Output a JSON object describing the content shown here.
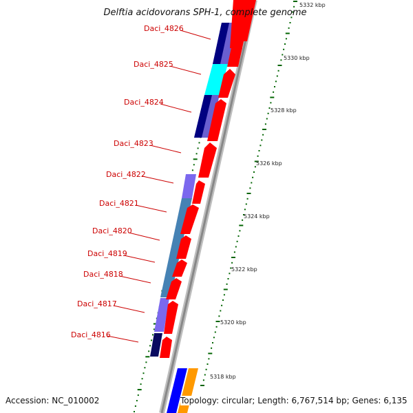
{
  "title": "Delftia acidovorans SPH-1, complete genome",
  "footer": {
    "accession": "Accession: NC_010002",
    "topology": "Topology: circular; Length: 6,767,514 bp; Genes: 6,135"
  },
  "kbp_ticks": [
    "5332 kbp",
    "5330 kbp",
    "5328 kbp",
    "5326 kbp",
    "5324 kbp",
    "5322 kbp",
    "5320 kbp",
    "5318 kbp"
  ],
  "genes": [
    "Daci_4826",
    "Daci_4825",
    "Daci_4824",
    "Daci_4823",
    "Daci_4822",
    "Daci_4821",
    "Daci_4820",
    "Daci_4819",
    "Daci_4818",
    "Daci_4817",
    "Daci_4816"
  ],
  "colors": {
    "cds": "#ff0000",
    "cog_navy": "#000080",
    "cog_purple": "#8070d8",
    "cog_cyan": "#00ffff",
    "cog_steelblue": "#4682b4",
    "cog_blue": "#0000ff",
    "cog_orange": "#ff9900",
    "backbone": "#888888",
    "tick_green": "#006400"
  }
}
